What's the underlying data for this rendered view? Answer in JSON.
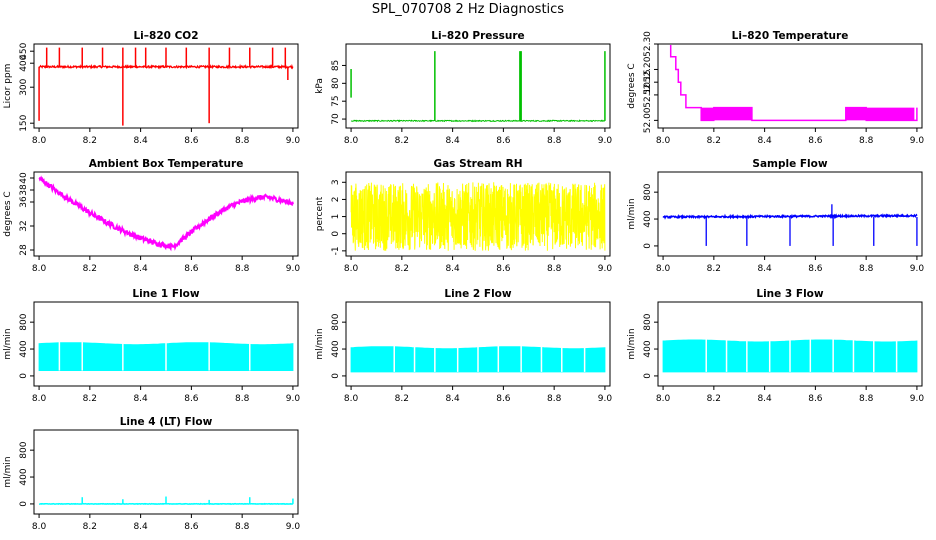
{
  "main_title": "SPL_070708  2 Hz Diagnostics",
  "chart_data": [
    {
      "type": "line",
      "title": "Li–820 CO2",
      "xlabel": "",
      "ylabel": "Licor ppm",
      "xlim": [
        7.98,
        9.02
      ],
      "ylim": [
        130,
        480
      ],
      "xticks": [
        8.0,
        8.2,
        8.4,
        8.6,
        8.8,
        9.0
      ],
      "yticks": [
        150,
        300,
        400,
        450
      ],
      "color": "#ff0000",
      "gen": "co2",
      "series": [
        {
          "values_summary": {
            "baseline": 385,
            "spikes_up_to": 470,
            "drop_at_8_33": 140,
            "drop_at_8_67": 150
          }
        }
      ]
    },
    {
      "type": "line",
      "title": "Li–820 Pressure",
      "xlabel": "",
      "ylabel": "kPa",
      "xlim": [
        7.98,
        9.02
      ],
      "ylim": [
        67.5,
        91
      ],
      "xticks": [
        8.0,
        8.2,
        8.4,
        8.6,
        8.8,
        9.0
      ],
      "yticks": [
        70,
        75,
        80,
        85
      ],
      "color": "#00c000",
      "gen": "pressure",
      "series": [
        {
          "values_summary": {
            "baseline": 69.5,
            "spikes_at": [
              8.33,
              8.67,
              9.0
            ],
            "spike_value": 89
          }
        }
      ]
    },
    {
      "type": "line",
      "title": "Li–820 Temperature",
      "xlabel": "",
      "ylabel": "degrees C",
      "xlim": [
        7.98,
        9.02
      ],
      "ylim": [
        51.97,
        52.3
      ],
      "xticks": [
        8.0,
        8.2,
        8.4,
        8.6,
        8.8,
        9.0
      ],
      "yticks": [
        52.0,
        52.1,
        52.15,
        52.2,
        52.3
      ],
      "color": "#ff00ff",
      "gen": "temp",
      "series": [
        {
          "values_summary": {
            "start": 52.3,
            "plateau": 52.05,
            "min": 52.0,
            "end": 52.05
          }
        }
      ]
    },
    {
      "type": "line",
      "title": "Ambient Box Temperature",
      "xlabel": "",
      "ylabel": "degrees C",
      "xlim": [
        7.98,
        9.02
      ],
      "ylim": [
        27,
        41
      ],
      "xticks": [
        8.0,
        8.2,
        8.4,
        8.6,
        8.8,
        9.0
      ],
      "yticks": [
        28,
        32,
        36,
        38,
        40
      ],
      "color": "#ff00ff",
      "gen": "ambient",
      "series": [
        {
          "values_summary": {
            "start": 40,
            "min": 28.5,
            "min_at": 8.53,
            "peak": 36.8,
            "peak_at": 8.9,
            "end": 35.5
          }
        }
      ]
    },
    {
      "type": "line",
      "title": "Gas Stream RH",
      "xlabel": "",
      "ylabel": "percent",
      "xlim": [
        7.98,
        9.02
      ],
      "ylim": [
        -1.3,
        3.6
      ],
      "xticks": [
        8.0,
        8.2,
        8.4,
        8.6,
        8.8,
        9.0
      ],
      "yticks": [
        -1,
        0,
        1,
        2,
        3
      ],
      "color": "#ffff00",
      "gen": "rh",
      "series": [
        {
          "values_summary": {
            "range_low": -1.0,
            "range_high": 3.0
          }
        }
      ]
    },
    {
      "type": "line",
      "title": "Sample Flow",
      "xlabel": "",
      "ylabel": "ml/min",
      "xlim": [
        7.98,
        9.02
      ],
      "ylim": [
        -150,
        1100
      ],
      "xticks": [
        8.0,
        8.2,
        8.4,
        8.6,
        8.8,
        9.0
      ],
      "yticks": [
        0,
        400,
        800
      ],
      "color": "#0000ff",
      "gen": "sample",
      "series": [
        {
          "values_summary": {
            "baseline": 430,
            "drops_to": 0,
            "drops_at": [
              8.17,
              8.33,
              8.5,
              8.67,
              8.83,
              9.0
            ]
          }
        }
      ]
    },
    {
      "type": "area",
      "title": "Line 1 Flow",
      "xlabel": "",
      "ylabel": "ml/min",
      "xlim": [
        7.98,
        9.02
      ],
      "ylim": [
        -150,
        1100
      ],
      "xticks": [
        8.0,
        8.2,
        8.4,
        8.6,
        8.8,
        9.0
      ],
      "yticks": [
        0,
        400,
        800
      ],
      "color": "#00ffff",
      "gen": "line1",
      "series": [
        {
          "values_summary": {
            "low": 80,
            "high": 500
          }
        }
      ]
    },
    {
      "type": "area",
      "title": "Line 2 Flow",
      "xlabel": "",
      "ylabel": "ml/min",
      "xlim": [
        7.98,
        9.02
      ],
      "ylim": [
        -150,
        1100
      ],
      "xticks": [
        8.0,
        8.2,
        8.4,
        8.6,
        8.8,
        9.0
      ],
      "yticks": [
        0,
        400,
        800
      ],
      "color": "#00ffff",
      "gen": "line2",
      "series": [
        {
          "values_summary": {
            "low": 60,
            "high": 440
          }
        }
      ]
    },
    {
      "type": "area",
      "title": "Line 3 Flow",
      "xlabel": "",
      "ylabel": "ml/min",
      "xlim": [
        7.98,
        9.02
      ],
      "ylim": [
        -150,
        1100
      ],
      "xticks": [
        8.0,
        8.2,
        8.4,
        8.6,
        8.8,
        9.0
      ],
      "yticks": [
        0,
        400,
        800
      ],
      "color": "#00ffff",
      "gen": "line3",
      "series": [
        {
          "values_summary": {
            "low": 60,
            "high": 540
          }
        }
      ]
    },
    {
      "type": "line",
      "title": "Line 4 (LT) Flow",
      "xlabel": "",
      "ylabel": "ml/min",
      "xlim": [
        7.98,
        9.02
      ],
      "ylim": [
        -150,
        1100
      ],
      "xticks": [
        8.0,
        8.2,
        8.4,
        8.6,
        8.8,
        9.0
      ],
      "yticks": [
        0,
        400,
        800
      ],
      "color": "#00ffff",
      "gen": "line4",
      "series": [
        {
          "values_summary": {
            "baseline": 0,
            "spike_value": 100,
            "spikes_at": [
              8.17,
              8.33,
              8.5,
              8.67,
              8.83,
              9.0
            ]
          }
        }
      ]
    }
  ]
}
